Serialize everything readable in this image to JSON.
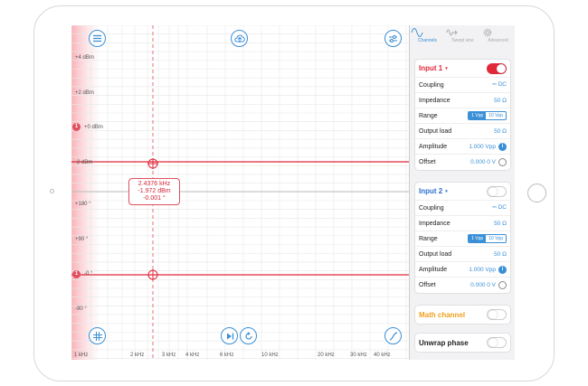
{
  "plot": {
    "y_labels": [
      "+4 dBm",
      "+2 dBm",
      "+0 dBm",
      "-2 dBm",
      "+180 °",
      "+90 °",
      "-0 °",
      "-90 °"
    ],
    "x_labels": [
      "1 kHz",
      "2 kHz",
      "3 kHz",
      "4 kHz",
      "6 kHz",
      "10 kHz",
      "20 kHz",
      "30 kHz",
      "40 kHz"
    ],
    "channel_marker_label": "1",
    "readout": {
      "frequency": "2.4376 kHz",
      "amplitude": "-1.972 dBm",
      "phase": "-0.001 °"
    },
    "colors": {
      "channel1": "#e0283a",
      "grid": "#e6e6e6",
      "accent": "#3a8fd6"
    }
  },
  "tabs": [
    {
      "label": "Channels",
      "icon": "sine-wave-icon",
      "active": true
    },
    {
      "label": "Swept sine",
      "icon": "swept-sine-icon",
      "active": false
    },
    {
      "label": "Advanced",
      "icon": "gear-icon",
      "active": false
    }
  ],
  "input1": {
    "title": "Input 1",
    "enabled": true,
    "coupling_label": "Coupling",
    "coupling_value": "DC",
    "impedance_label": "Impedance",
    "impedance_value": "50 Ω",
    "range_label": "Range",
    "range_options": [
      "1 Vpp",
      "10 Vpp"
    ],
    "range_selected": "1 Vpp",
    "output_load_label": "Output load",
    "output_load_value": "50 Ω",
    "amplitude_label": "Amplitude",
    "amplitude_value": "1.000 Vpp",
    "offset_label": "Offset",
    "offset_value": "0.000 0 V"
  },
  "input2": {
    "title": "Input 2",
    "enabled": false,
    "coupling_label": "Coupling",
    "coupling_value": "DC",
    "impedance_label": "Impedance",
    "impedance_value": "50 Ω",
    "range_label": "Range",
    "range_options": [
      "1 Vpp",
      "10 Vpp"
    ],
    "range_selected": "1 Vpp",
    "output_load_label": "Output load",
    "output_load_value": "50 Ω",
    "amplitude_label": "Amplitude",
    "amplitude_value": "1.000 Vpp",
    "offset_label": "Offset",
    "offset_value": "0.000 0 V"
  },
  "math": {
    "title": "Math channel",
    "enabled": false
  },
  "unwrap": {
    "title": "Unwrap phase",
    "enabled": false
  }
}
